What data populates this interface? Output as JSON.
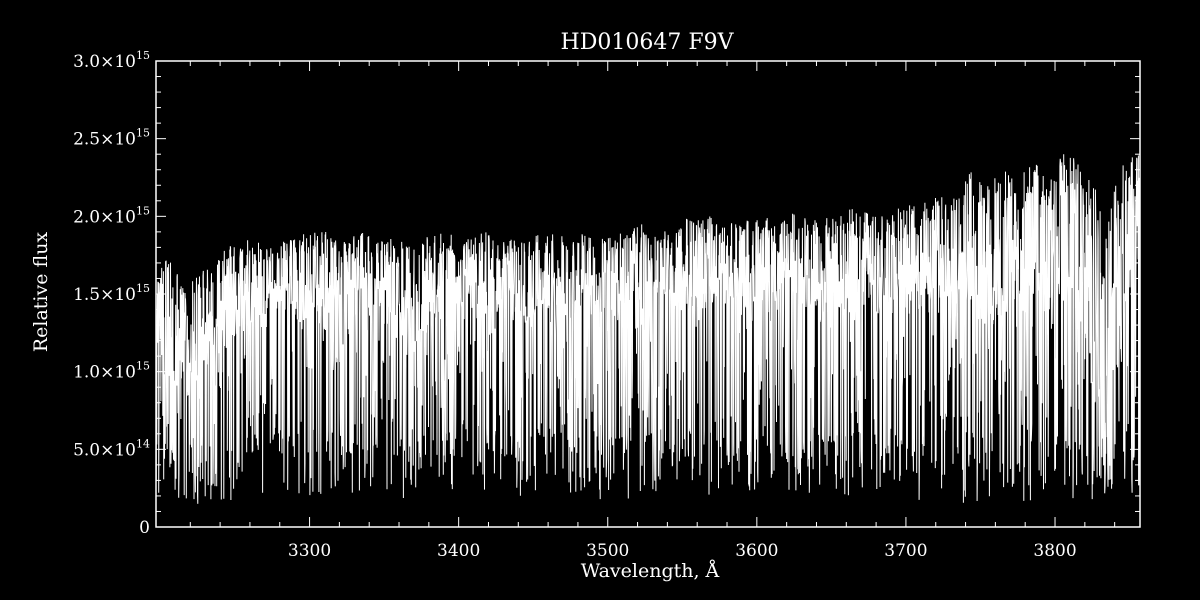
{
  "chart_data": {
    "type": "line",
    "title": "HD010647  F9V",
    "xlabel": "Wavelength, Å",
    "ylabel": "Relative flux",
    "xlim": [
      3197,
      3857
    ],
    "ylim": [
      0,
      3000000000000000.0
    ],
    "grid": false,
    "colors": {
      "background": "#000000",
      "foreground": "#ffffff",
      "line": "#ffffff"
    },
    "x_ticks": [
      {
        "value": 3300,
        "label": "3300"
      },
      {
        "value": 3400,
        "label": "3400"
      },
      {
        "value": 3500,
        "label": "3500"
      },
      {
        "value": 3600,
        "label": "3600"
      },
      {
        "value": 3700,
        "label": "3700"
      },
      {
        "value": 3800,
        "label": "3800"
      }
    ],
    "x_minor_step": 20,
    "y_ticks": [
      {
        "value": 0,
        "mant": "0",
        "exp": ""
      },
      {
        "value": 500000000000000.0,
        "mant": "5.0×10",
        "exp": "14"
      },
      {
        "value": 1000000000000000.0,
        "mant": "1.0×10",
        "exp": "15"
      },
      {
        "value": 1500000000000000.0,
        "mant": "1.5×10",
        "exp": "15"
      },
      {
        "value": 2000000000000000.0,
        "mant": "2.0×10",
        "exp": "15"
      },
      {
        "value": 2500000000000000.0,
        "mant": "2.5×10",
        "exp": "15"
      },
      {
        "value": 3000000000000000.0,
        "mant": "3.0×10",
        "exp": "15"
      }
    ],
    "y_minor_step": 100000000000000.0,
    "series": [
      {
        "x": [
          3197,
          3205,
          3215,
          3225,
          3235,
          3245,
          3255,
          3265,
          3275,
          3285,
          3295,
          3305,
          3315,
          3325,
          3335,
          3345,
          3355,
          3365,
          3375,
          3385,
          3395,
          3405,
          3415,
          3425,
          3435,
          3445,
          3455,
          3465,
          3475,
          3485,
          3495,
          3505,
          3515,
          3525,
          3535,
          3545,
          3555,
          3565,
          3575,
          3585,
          3595,
          3605,
          3615,
          3625,
          3635,
          3645,
          3655,
          3665,
          3675,
          3685,
          3695,
          3705,
          3715,
          3725,
          3735,
          3745,
          3755,
          3765,
          3775,
          3785,
          3795,
          3805,
          3815,
          3825,
          3835,
          3845,
          3857
        ],
        "upper": [
          1600000000000000.0,
          1750000000000000.0,
          1600000000000000.0,
          1650000000000000.0,
          1700000000000000.0,
          1800000000000000.0,
          1850000000000000.0,
          1850000000000000.0,
          1800000000000000.0,
          1850000000000000.0,
          1900000000000000.0,
          1900000000000000.0,
          1900000000000000.0,
          1850000000000000.0,
          1900000000000000.0,
          1850000000000000.0,
          1900000000000000.0,
          1850000000000000.0,
          1850000000000000.0,
          1900000000000000.0,
          1900000000000000.0,
          1850000000000000.0,
          1900000000000000.0,
          1900000000000000.0,
          1850000000000000.0,
          1850000000000000.0,
          1900000000000000.0,
          1900000000000000.0,
          1850000000000000.0,
          1900000000000000.0,
          1850000000000000.0,
          1900000000000000.0,
          1950000000000000.0,
          1950000000000000.0,
          1900000000000000.0,
          1950000000000000.0,
          2000000000000000.0,
          2000000000000000.0,
          2000000000000000.0,
          1950000000000000.0,
          2000000000000000.0,
          2000000000000000.0,
          2000000000000000.0,
          2050000000000000.0,
          2000000000000000.0,
          2000000000000000.0,
          2050000000000000.0,
          2050000000000000.0,
          2050000000000000.0,
          2000000000000000.0,
          2050000000000000.0,
          2100000000000000.0,
          2100000000000000.0,
          2150000000000000.0,
          2200000000000000.0,
          2300000000000000.0,
          2200000000000000.0,
          2300000000000000.0,
          2250000000000000.0,
          2450000000000000.0,
          2200000000000000.0,
          2450000000000000.0,
          2350000000000000.0,
          2300000000000000.0,
          1950000000000000.0,
          2400000000000000.0,
          2400000000000000.0
        ],
        "lower": [
          200000000000000.0,
          180000000000000.0,
          150000000000000.0,
          140000000000000.0,
          130000000000000.0,
          150000000000000.0,
          180000000000000.0,
          200000000000000.0,
          200000000000000.0,
          220000000000000.0,
          180000000000000.0,
          200000000000000.0,
          200000000000000.0,
          200000000000000.0,
          180000000000000.0,
          180000000000000.0,
          180000000000000.0,
          160000000000000.0,
          180000000000000.0,
          200000000000000.0,
          200000000000000.0,
          220000000000000.0,
          200000000000000.0,
          200000000000000.0,
          200000000000000.0,
          180000000000000.0,
          200000000000000.0,
          200000000000000.0,
          220000000000000.0,
          180000000000000.0,
          170000000000000.0,
          180000000000000.0,
          180000000000000.0,
          190000000000000.0,
          180000000000000.0,
          200000000000000.0,
          200000000000000.0,
          200000000000000.0,
          200000000000000.0,
          180000000000000.0,
          190000000000000.0,
          200000000000000.0,
          200000000000000.0,
          200000000000000.0,
          200000000000000.0,
          180000000000000.0,
          180000000000000.0,
          180000000000000.0,
          190000000000000.0,
          180000000000000.0,
          160000000000000.0,
          160000000000000.0,
          150000000000000.0,
          160000000000000.0,
          150000000000000.0,
          160000000000000.0,
          160000000000000.0,
          150000000000000.0,
          150000000000000.0,
          150000000000000.0,
          160000000000000.0,
          150000000000000.0,
          150000000000000.0,
          150000000000000.0,
          140000000000000.0,
          140000000000000.0,
          150000000000000.0
        ],
        "cont": [
          1300000000000000.0,
          1100000000000000.0,
          1000000000000000.0,
          1100000000000000.0,
          1200000000000000.0,
          1300000000000000.0,
          1400000000000000.0,
          1450000000000000.0,
          1500000000000000.0,
          1500000000000000.0,
          1450000000000000.0,
          1500000000000000.0,
          1500000000000000.0,
          1450000000000000.0,
          1500000000000000.0,
          1450000000000000.0,
          1400000000000000.0,
          1250000000000000.0,
          1350000000000000.0,
          1450000000000000.0,
          1500000000000000.0,
          1500000000000000.0,
          1450000000000000.0,
          1500000000000000.0,
          1450000000000000.0,
          1400000000000000.0,
          1450000000000000.0,
          1500000000000000.0,
          1450000000000000.0,
          1500000000000000.0,
          1450000000000000.0,
          1450000000000000.0,
          1500000000000000.0,
          1550000000000000.0,
          1550000000000000.0,
          1500000000000000.0,
          1550000000000000.0,
          1550000000000000.0,
          1600000000000000.0,
          1550000000000000.0,
          1550000000000000.0,
          1550000000000000.0,
          1600000000000000.0,
          1600000000000000.0,
          1550000000000000.0,
          1450000000000000.0,
          1500000000000000.0,
          1550000000000000.0,
          1550000000000000.0,
          1500000000000000.0,
          1550000000000000.0,
          1550000000000000.0,
          1600000000000000.0,
          1550000000000000.0,
          1550000000000000.0,
          1600000000000000.0,
          1500000000000000.0,
          1550000000000000.0,
          1500000000000000.0,
          1700000000000000.0,
          1450000000000000.0,
          1700000000000000.0,
          1550000000000000.0,
          1200000000000000.0,
          800000000000000.0,
          1500000000000000.0,
          1700000000000000.0
        ]
      }
    ]
  }
}
